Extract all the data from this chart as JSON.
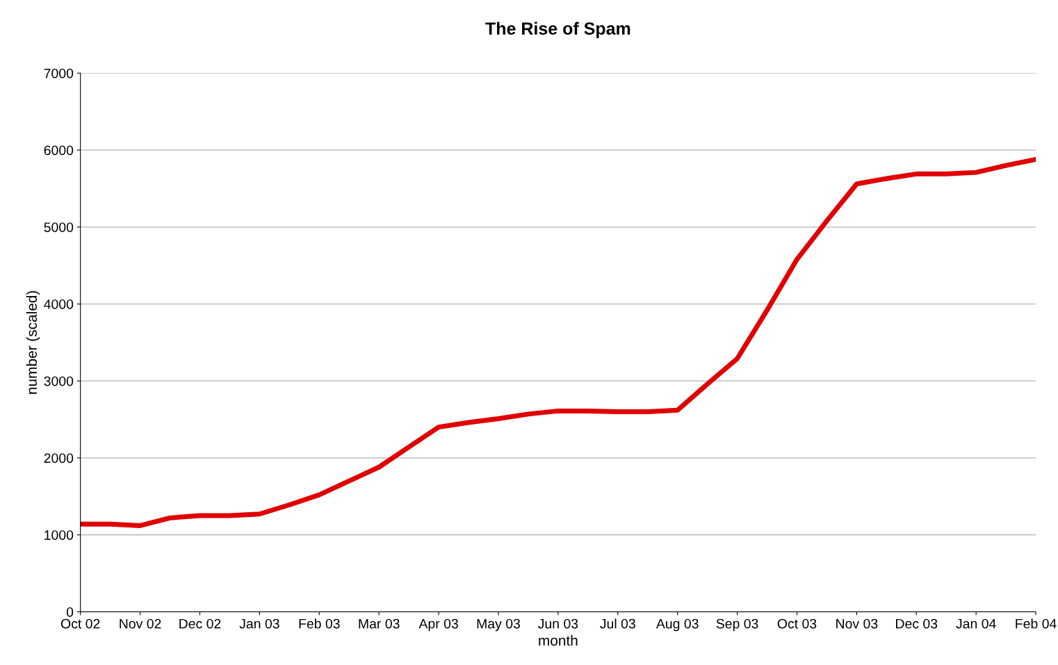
{
  "chart_data": {
    "type": "line",
    "title": "The Rise of Spam",
    "xlabel": "month",
    "ylabel": "number (scaled)",
    "categories": [
      "Oct 02",
      null,
      "Nov 02",
      null,
      "Dec 02",
      null,
      "Jan 03",
      null,
      "Feb 03",
      null,
      "Mar 03",
      null,
      "Apr 03",
      null,
      "May 03",
      null,
      "Jun 03",
      null,
      "Jul 03",
      null,
      "Aug 03",
      null,
      "Sep 03",
      null,
      "Oct 03",
      null,
      "Nov 03",
      null,
      "Dec 03",
      null,
      "Jan 04",
      null,
      "Feb 04"
    ],
    "series": [
      {
        "color": "#e00000",
        "values": [
          1140,
          1140,
          1120,
          1220,
          1250,
          1250,
          1270,
          1390,
          1520,
          1700,
          1880,
          2140,
          2400,
          2460,
          2510,
          2570,
          2610,
          2610,
          2600,
          2600,
          2620,
          2960,
          3290,
          3920,
          4580,
          5080,
          5560,
          5630,
          5690,
          5690,
          5710,
          5800,
          5880
        ]
      }
    ],
    "ylim": [
      0,
      7000
    ],
    "yticks": [
      0,
      1000,
      2000,
      3000,
      4000,
      5000,
      6000,
      7000
    ],
    "grid": "y",
    "legend": false,
    "marker": "none",
    "line_style": "solid"
  }
}
